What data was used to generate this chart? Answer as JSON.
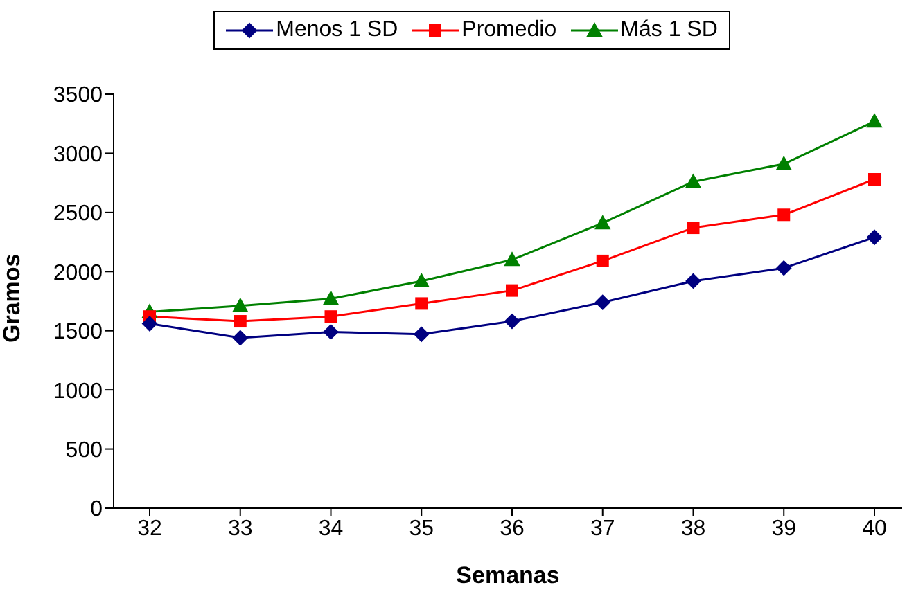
{
  "chart_data": {
    "type": "line",
    "xlabel": "Semanas",
    "ylabel": "Gramos",
    "categories": [
      "32",
      "33",
      "34",
      "35",
      "36",
      "37",
      "38",
      "39",
      "40"
    ],
    "series": [
      {
        "name": "Menos 1 SD",
        "color": "#000080",
        "marker": "diamond",
        "values": [
          1560,
          1440,
          1490,
          1470,
          1580,
          1740,
          1920,
          2030,
          2290
        ]
      },
      {
        "name": "Promedio",
        "color": "#ff0000",
        "marker": "square",
        "values": [
          1620,
          1580,
          1620,
          1730,
          1840,
          2090,
          2370,
          2480,
          2780
        ]
      },
      {
        "name": "Más 1 SD",
        "color": "#008000",
        "marker": "triangle",
        "values": [
          1660,
          1710,
          1770,
          1920,
          2100,
          2410,
          2760,
          2910,
          3270
        ]
      }
    ],
    "ylim": [
      0,
      3500
    ],
    "yticks": [
      0,
      500,
      1000,
      1500,
      2000,
      2500,
      3000,
      3500
    ],
    "grid": false,
    "legend": "top"
  }
}
